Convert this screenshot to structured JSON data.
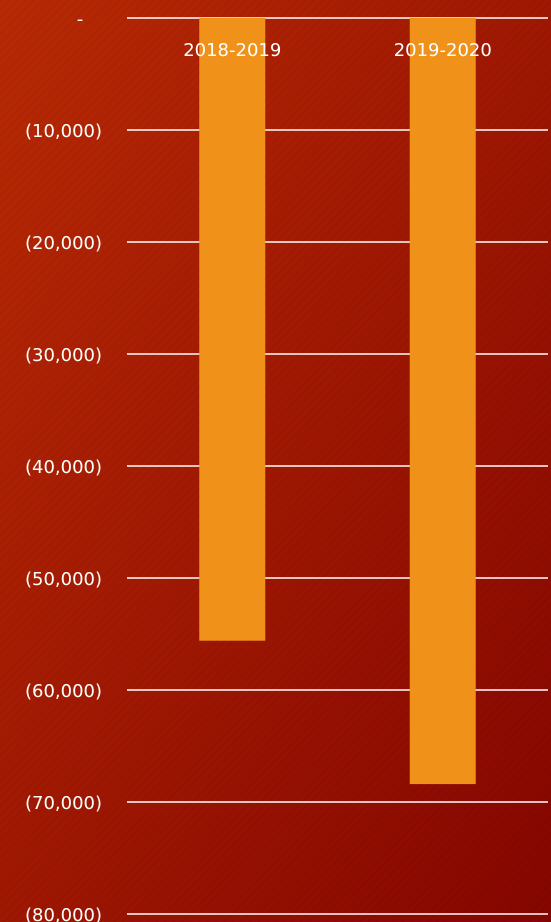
{
  "chart_data": {
    "type": "bar",
    "title": "",
    "xlabel": "",
    "ylabel": "",
    "categories": [
      "2018-2019",
      "2019-2020"
    ],
    "series": [
      {
        "values": [
          -55600,
          -68400
        ]
      }
    ],
    "ylim": [
      -80000,
      0
    ],
    "yticks": [
      0,
      -10000,
      -20000,
      -30000,
      -40000,
      -50000,
      -60000,
      -70000,
      -80000
    ],
    "ytick_labels": [
      "-",
      "(10,000)",
      "(20,000)",
      "(30,000)",
      "(40,000)",
      "(50,000)",
      "(60,000)",
      "(70,000)",
      "(80,000)"
    ],
    "grid": true,
    "legend": "none",
    "colors": {
      "bar": "#f0921a",
      "background_top": "#b82a05",
      "background_bottom": "#850500",
      "gridline": "#ffffff",
      "text": "#ffffff"
    }
  }
}
